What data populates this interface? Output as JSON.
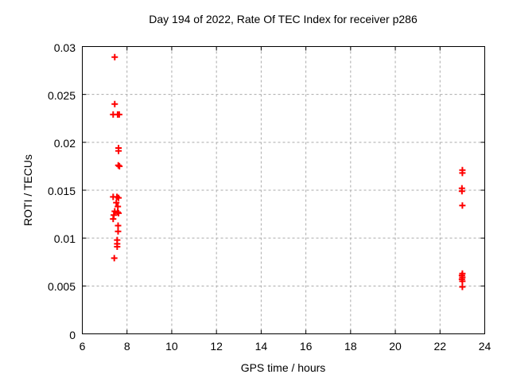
{
  "title": "Day 194 of 2022, Rate Of TEC Index for receiver p286",
  "colors": {
    "background": "#ffffff",
    "border": "#000000",
    "grid": "#aaaaaa",
    "marker": "#ff0000",
    "text": "#000000"
  },
  "chart_data": {
    "type": "scatter",
    "title": "Day 194 of 2022, Rate Of TEC Index for receiver p286",
    "xlabel": "GPS time / hours",
    "ylabel": "ROTI / TECUs",
    "xlim": [
      6,
      24
    ],
    "ylim": [
      0,
      0.03
    ],
    "xticks": [
      6,
      8,
      10,
      12,
      14,
      16,
      18,
      20,
      22,
      24
    ],
    "xtick_labels": [
      "6",
      "8",
      "10",
      "12",
      "14",
      "16",
      "18",
      "20",
      "22",
      "24"
    ],
    "yticks": [
      0,
      0.005,
      0.01,
      0.015,
      0.02,
      0.025,
      0.03
    ],
    "ytick_labels": [
      "0",
      "0.005",
      "0.01",
      "0.015",
      "0.02",
      "0.025",
      "0.03"
    ],
    "grid": true,
    "grid_style": "dashed",
    "legend": false,
    "marker": {
      "shape": "plus",
      "color": "#ff0000",
      "size": 4,
      "stroke_width": 2
    },
    "series": [
      {
        "name": "ROTI",
        "points": [
          [
            7.45,
            0.0289
          ],
          [
            7.45,
            0.024
          ],
          [
            7.38,
            0.0229
          ],
          [
            7.58,
            0.0229
          ],
          [
            7.65,
            0.0229
          ],
          [
            7.62,
            0.0194
          ],
          [
            7.62,
            0.0191
          ],
          [
            7.61,
            0.0176
          ],
          [
            7.66,
            0.0175
          ],
          [
            7.38,
            0.0143
          ],
          [
            7.55,
            0.0143
          ],
          [
            7.62,
            0.0142
          ],
          [
            7.52,
            0.0137
          ],
          [
            7.59,
            0.0133
          ],
          [
            7.45,
            0.0128
          ],
          [
            7.58,
            0.0127
          ],
          [
            7.62,
            0.0126
          ],
          [
            7.41,
            0.0124
          ],
          [
            7.38,
            0.012
          ],
          [
            7.6,
            0.0113
          ],
          [
            7.6,
            0.0107
          ],
          [
            7.56,
            0.0098
          ],
          [
            7.56,
            0.0094
          ],
          [
            7.56,
            0.0091
          ],
          [
            7.43,
            0.0079
          ],
          [
            23.0,
            0.0171
          ],
          [
            23.0,
            0.0168
          ],
          [
            22.98,
            0.0152
          ],
          [
            22.98,
            0.0149
          ],
          [
            23.0,
            0.0134
          ],
          [
            23.0,
            0.0063
          ],
          [
            22.98,
            0.0061
          ],
          [
            23.0,
            0.0059
          ],
          [
            22.98,
            0.0057
          ],
          [
            23.0,
            0.0055
          ],
          [
            23.0,
            0.0049
          ]
        ]
      }
    ]
  }
}
